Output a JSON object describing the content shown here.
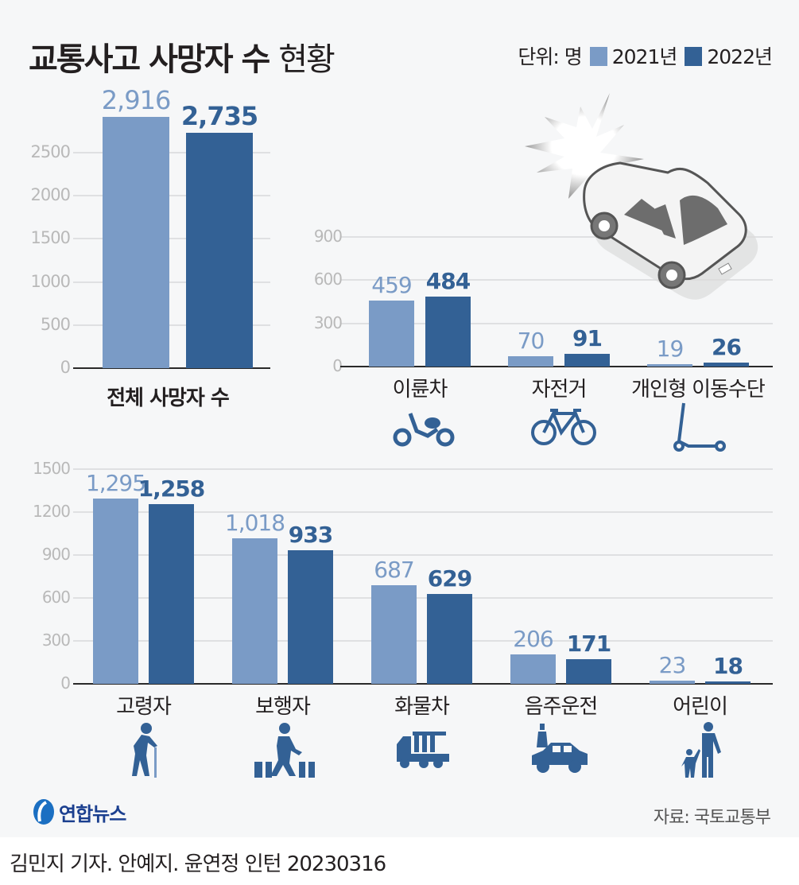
{
  "header": {
    "title_bold": "교통사고 사망자 수",
    "title_light": "현황",
    "unit_label": "단위: 명",
    "legend": [
      {
        "label": "2021년",
        "color": "#7a9bc6"
      },
      {
        "label": "2022년",
        "color": "#336195"
      }
    ]
  },
  "colors": {
    "y2021": "#7a9bc6",
    "y2022": "#336195",
    "icon": "#336195",
    "background": "#f6f7f8"
  },
  "chart_data": [
    {
      "type": "bar",
      "title": "전체 사망자 수",
      "categories": [
        "전체 사망자 수"
      ],
      "series": [
        {
          "name": "2021년",
          "values": [
            2916
          ]
        },
        {
          "name": "2022년",
          "values": [
            2735
          ]
        }
      ],
      "value_labels": [
        [
          "2,916"
        ],
        [
          "2,735"
        ]
      ],
      "yticks": [
        "0",
        "500",
        "1000",
        "1500",
        "2000",
        "2500"
      ],
      "ylim": [
        0,
        2916
      ],
      "grid": true
    },
    {
      "type": "bar",
      "categories": [
        "이륜차",
        "자전거",
        "개인형 이동수단"
      ],
      "series": [
        {
          "name": "2021년",
          "values": [
            459,
            70,
            19
          ]
        },
        {
          "name": "2022년",
          "values": [
            484,
            91,
            26
          ]
        }
      ],
      "value_labels": [
        [
          "459",
          "70",
          "19"
        ],
        [
          "484",
          "91",
          "26"
        ]
      ],
      "yticks": [
        "0",
        "300",
        "600",
        "900"
      ],
      "ylim": [
        0,
        900
      ],
      "grid": true,
      "icons": [
        "scooter-icon",
        "bicycle-icon",
        "kick-scooter-icon"
      ]
    },
    {
      "type": "bar",
      "categories": [
        "고령자",
        "보행자",
        "화물차",
        "음주운전",
        "어린이"
      ],
      "series": [
        {
          "name": "2021년",
          "values": [
            1295,
            1018,
            687,
            206,
            23
          ]
        },
        {
          "name": "2022년",
          "values": [
            1258,
            933,
            629,
            171,
            18
          ]
        }
      ],
      "value_labels": [
        [
          "1,295",
          "1,018",
          "687",
          "206",
          "23"
        ],
        [
          "1,258",
          "933",
          "629",
          "171",
          "18"
        ]
      ],
      "yticks": [
        "0",
        "300",
        "600",
        "900",
        "1200",
        "1500"
      ],
      "ylim": [
        0,
        1500
      ],
      "grid": true,
      "icons": [
        "elderly-icon",
        "pedestrian-crossing-icon",
        "truck-icon",
        "drunk-driving-icon",
        "child-with-adult-icon"
      ]
    }
  ],
  "footer": {
    "logo": "연합뉴스",
    "source": "자료: 국토교통부",
    "credit": "김민지 기자. 안예지. 윤연정 인턴  20230316"
  }
}
